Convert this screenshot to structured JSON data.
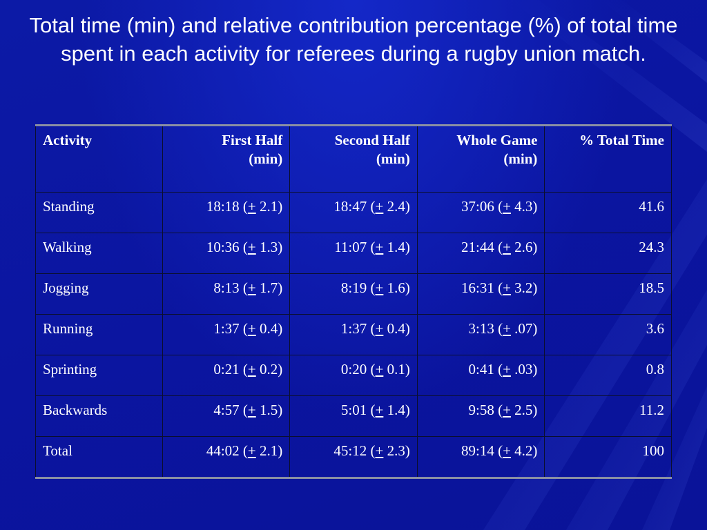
{
  "slide": {
    "title": "Total time (min) and relative contribution percentage (%) of total time spent in each activity for referees during a rugby union match."
  },
  "table": {
    "headers": [
      {
        "line1": "Activity",
        "line2": ""
      },
      {
        "line1": "First Half",
        "line2": "(min)"
      },
      {
        "line1": "Second Half",
        "line2": "(min)"
      },
      {
        "line1": "Whole Game",
        "line2": "(min)"
      },
      {
        "line1": "% Total Time",
        "line2": ""
      }
    ],
    "rows": [
      {
        "activity": "Standing",
        "first": {
          "time": "18:18",
          "sd": "2.1"
        },
        "second": {
          "time": "18:47",
          "sd": "2.4"
        },
        "whole": {
          "time": "37:06",
          "sd": "4.3"
        },
        "pct": "41.6"
      },
      {
        "activity": "Walking",
        "first": {
          "time": "10:36",
          "sd": "1.3"
        },
        "second": {
          "time": "11:07",
          "sd": "1.4"
        },
        "whole": {
          "time": "21:44",
          "sd": "2.6"
        },
        "pct": "24.3"
      },
      {
        "activity": "Jogging",
        "first": {
          "time": "8:13",
          "sd": "1.7"
        },
        "second": {
          "time": "8:19",
          "sd": "1.6"
        },
        "whole": {
          "time": "16:31",
          "sd": "3.2"
        },
        "pct": "18.5"
      },
      {
        "activity": "Running",
        "first": {
          "time": "1:37",
          "sd": "0.4"
        },
        "second": {
          "time": "1:37",
          "sd": "0.4"
        },
        "whole": {
          "time": "3:13",
          "sd": ".07"
        },
        "pct": "3.6"
      },
      {
        "activity": "Sprinting",
        "first": {
          "time": "0:21",
          "sd": "0.2"
        },
        "second": {
          "time": "0:20",
          "sd": "0.1"
        },
        "whole": {
          "time": "0:41",
          "sd": ".03"
        },
        "pct": "0.8"
      },
      {
        "activity": "Backwards",
        "first": {
          "time": "4:57",
          "sd": "1.5"
        },
        "second": {
          "time": "5:01",
          "sd": "1.4"
        },
        "whole": {
          "time": "9:58",
          "sd": "2.5"
        },
        "pct": "11.2"
      },
      {
        "activity": "Total",
        "first": {
          "time": "44:02",
          "sd": "2.1"
        },
        "second": {
          "time": "45:12",
          "sd": "2.3"
        },
        "whole": {
          "time": "89:14",
          "sd": "4.2"
        },
        "pct": "100"
      }
    ],
    "pm_symbol": "+"
  },
  "colors": {
    "background": "#0a16a8",
    "text": "#ffffff",
    "rule": "#8a8fa3"
  }
}
